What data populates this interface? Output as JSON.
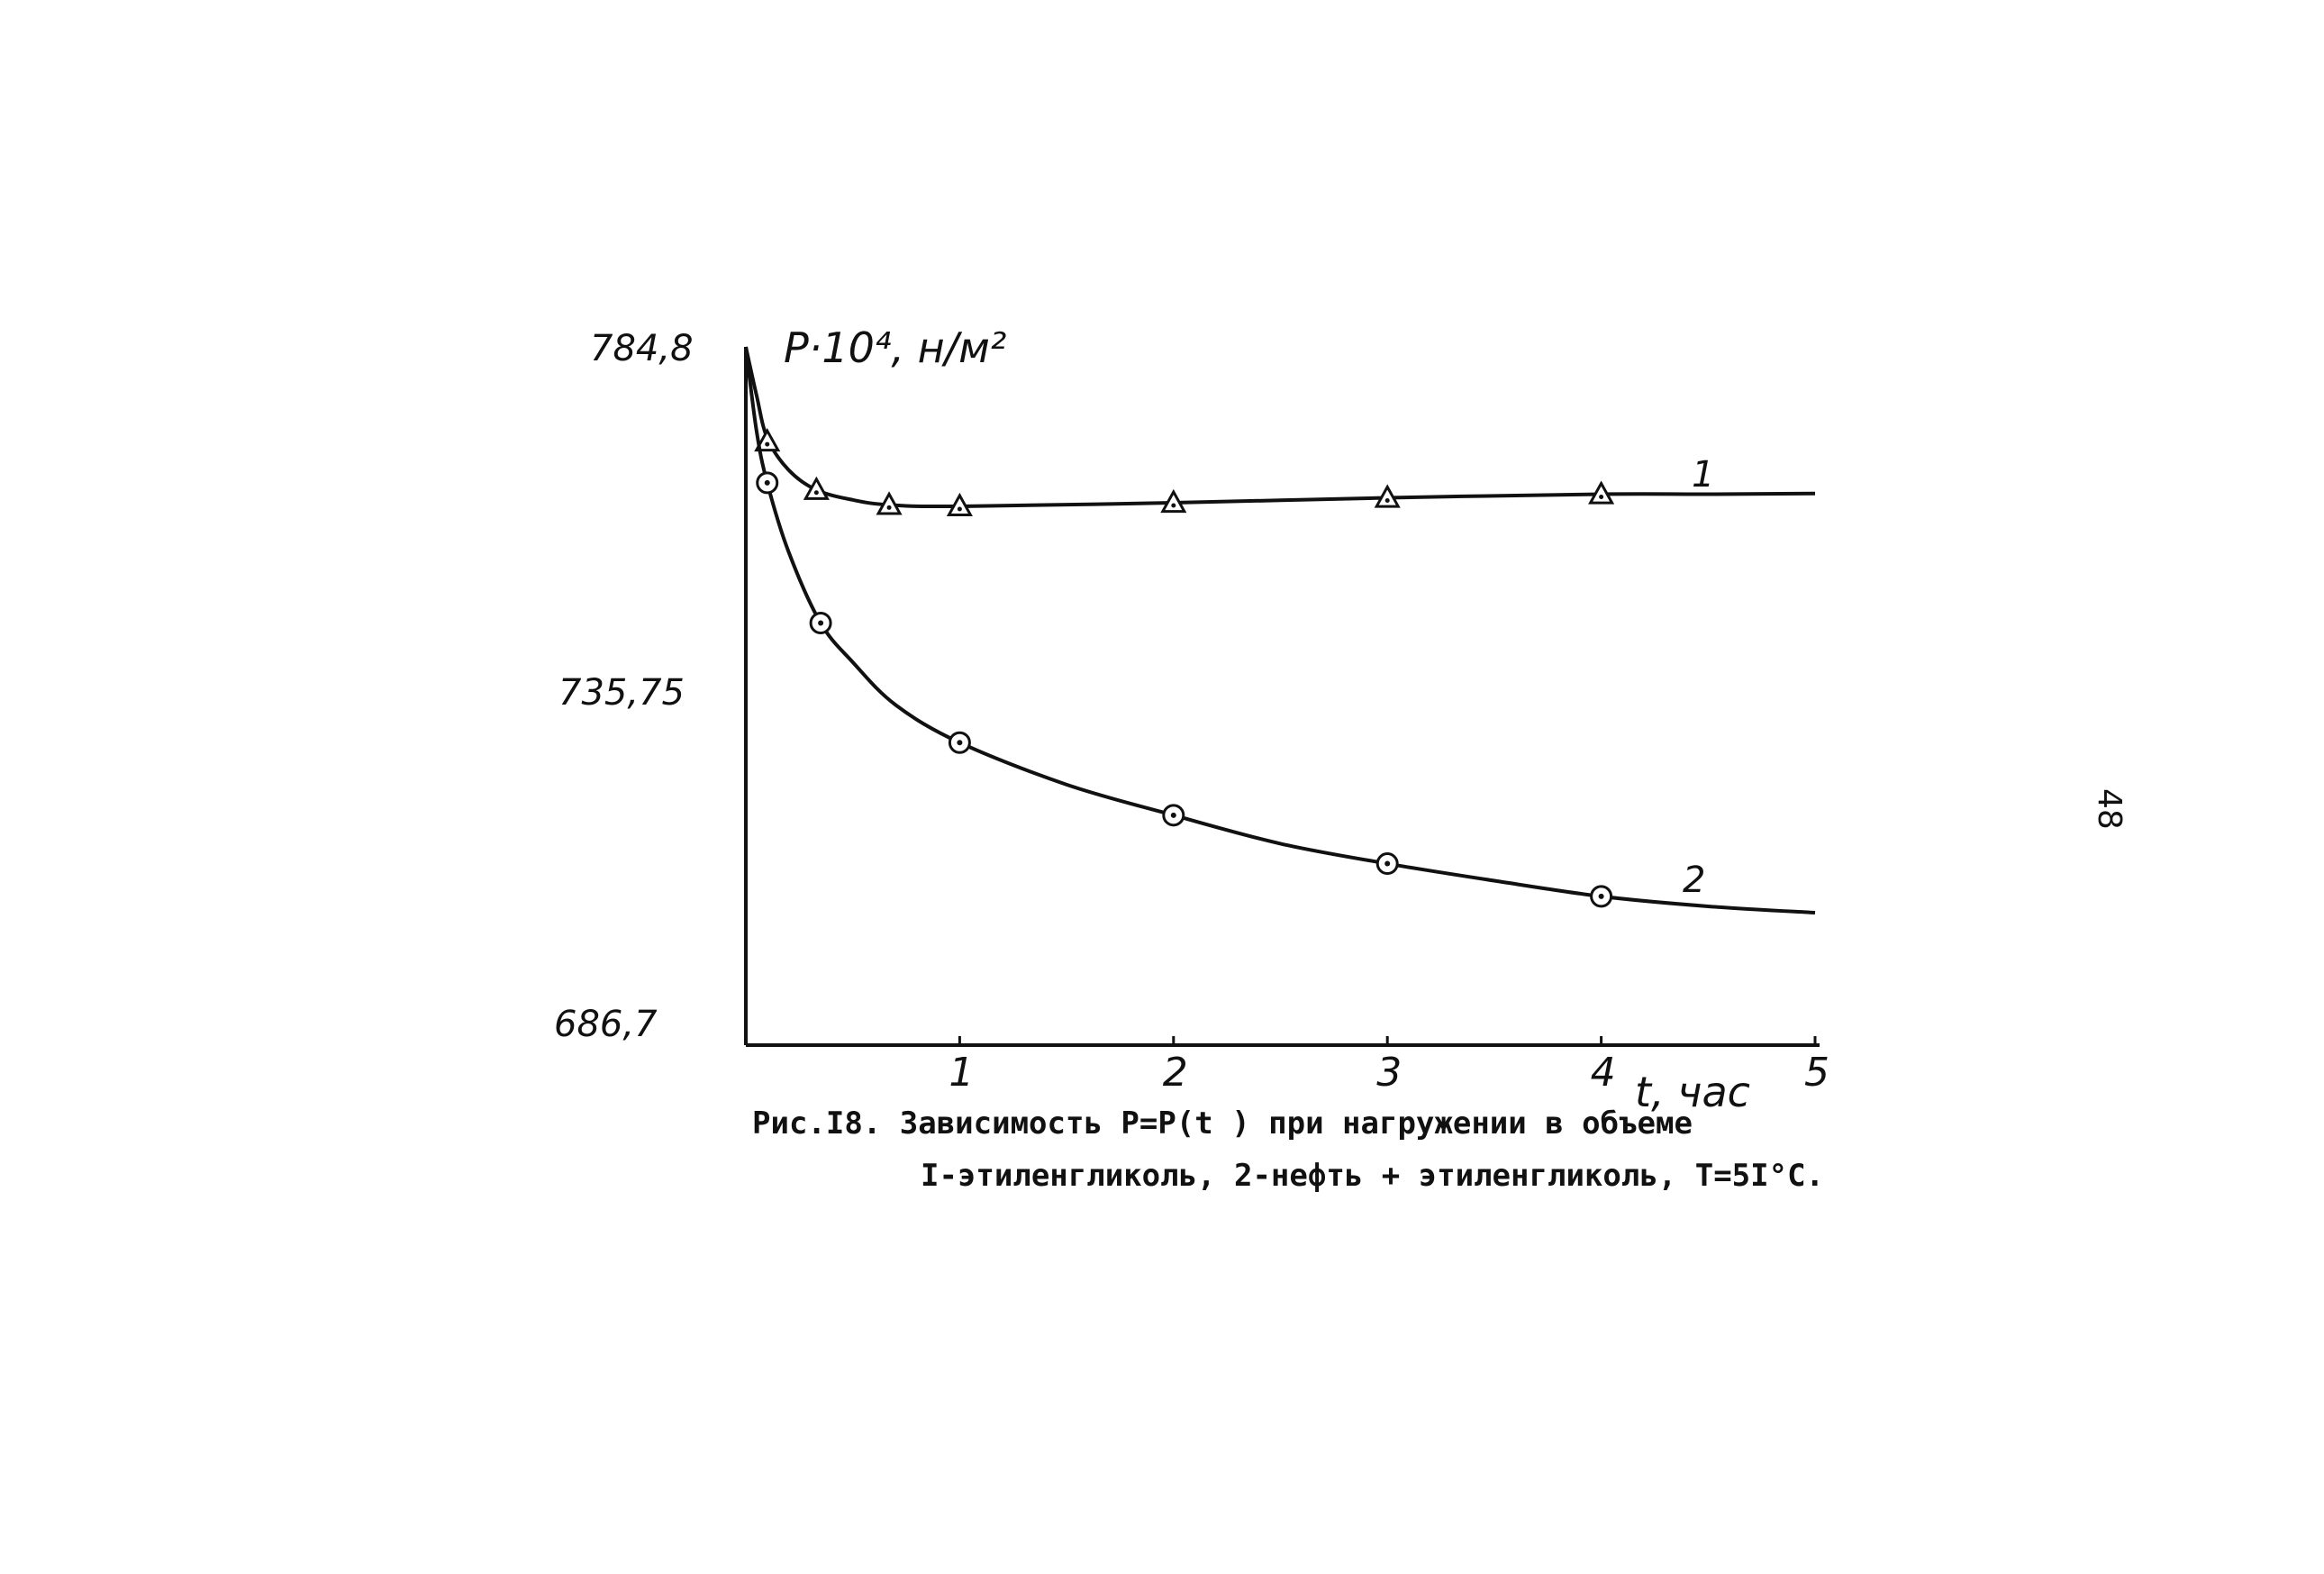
{
  "page_number": "48",
  "chart_data": {
    "type": "line",
    "title": "",
    "xlabel": "t, час",
    "ylabel": "P·10⁴, н/м²",
    "xlim": [
      0,
      5
    ],
    "ylim": [
      686.7,
      784.8
    ],
    "x_ticks": [
      "1",
      "2",
      "3",
      "4",
      "5"
    ],
    "y_ticks": [
      {
        "value": 784.8,
        "label": "784,8"
      },
      {
        "value": 735.75,
        "label": "735,75"
      },
      {
        "value": 686.7,
        "label": "686,7"
      }
    ],
    "grid": false,
    "series": [
      {
        "name": "1",
        "marker": "triangle",
        "points": [
          [
            0.1,
            771.5
          ],
          [
            0.33,
            764.7
          ],
          [
            0.67,
            762.6
          ],
          [
            1.0,
            762.4
          ],
          [
            2.0,
            762.9
          ],
          [
            3.0,
            763.6
          ],
          [
            4.0,
            764.1
          ]
        ],
        "curve": [
          [
            0.0,
            784.8
          ],
          [
            0.05,
            778.0
          ],
          [
            0.1,
            772.0
          ],
          [
            0.2,
            767.5
          ],
          [
            0.33,
            764.7
          ],
          [
            0.5,
            763.3
          ],
          [
            0.67,
            762.6
          ],
          [
            1.0,
            762.4
          ],
          [
            2.0,
            762.9
          ],
          [
            3.0,
            763.6
          ],
          [
            4.0,
            764.1
          ],
          [
            4.5,
            764.1
          ],
          [
            5.0,
            764.2
          ]
        ]
      },
      {
        "name": "2",
        "marker": "circle",
        "points": [
          [
            0.1,
            765.7
          ],
          [
            0.35,
            746.0
          ],
          [
            1.0,
            729.2
          ],
          [
            2.0,
            719.0
          ],
          [
            3.0,
            712.2
          ],
          [
            4.0,
            707.6
          ]
        ],
        "curve": [
          [
            0.0,
            784.8
          ],
          [
            0.05,
            773.0
          ],
          [
            0.1,
            765.7
          ],
          [
            0.2,
            756.0
          ],
          [
            0.35,
            746.0
          ],
          [
            0.5,
            740.5
          ],
          [
            0.7,
            734.5
          ],
          [
            1.0,
            729.2
          ],
          [
            1.5,
            723.3
          ],
          [
            2.0,
            719.0
          ],
          [
            2.5,
            715.0
          ],
          [
            3.0,
            712.2
          ],
          [
            3.5,
            709.8
          ],
          [
            4.0,
            707.6
          ],
          [
            4.5,
            706.2
          ],
          [
            5.0,
            705.3
          ]
        ]
      }
    ]
  },
  "caption": {
    "line1": "Рис.I8.  Зависимость P=P(t ) при нагружении в объеме",
    "line2": "I-этиленгликоль, 2-нефть + этиленгликоль,  T=5I°C."
  }
}
